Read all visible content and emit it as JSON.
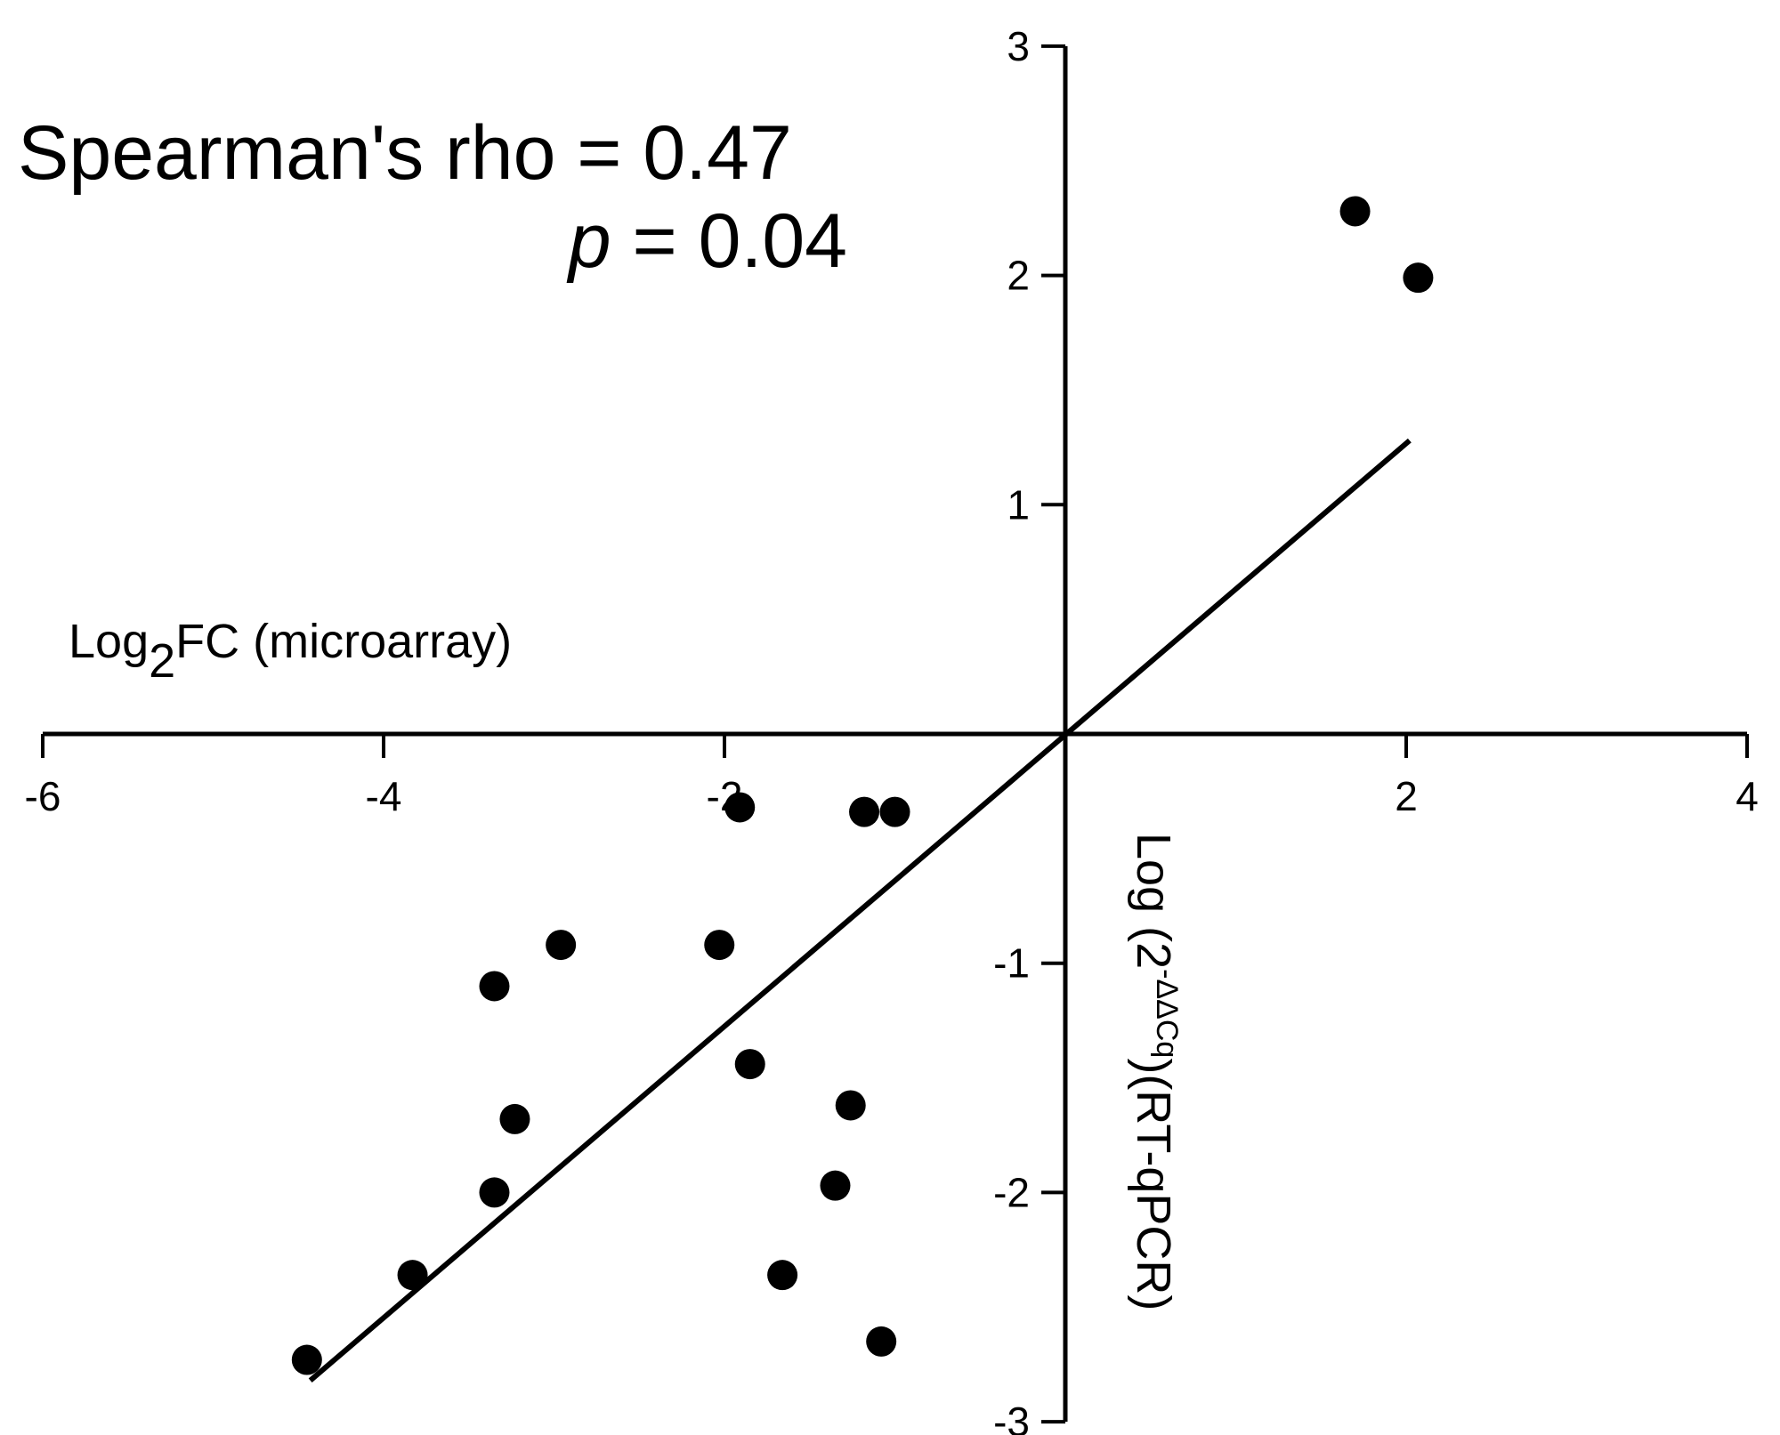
{
  "chart_data": {
    "type": "scatter",
    "title": "",
    "xlabel": {
      "main": "Log",
      "sub": "2",
      "rest": "FC (microarray)"
    },
    "ylabel": {
      "main": "Log (2",
      "sup": "-ΔΔCq",
      "rest": ")(RT-qPCR)"
    },
    "annotation": {
      "line1": "Spearman's rho = 0.47",
      "p_symbol": "p",
      "line2_rest": " = 0.04"
    },
    "xlim": [
      -6,
      4
    ],
    "ylim": [
      -3,
      3
    ],
    "x_ticks": [
      "-6",
      "-4",
      "-2",
      "2",
      "4"
    ],
    "x_tick_values": [
      -6,
      -4,
      -2,
      2,
      4
    ],
    "y_ticks": [
      "3",
      "2",
      "1",
      "-1",
      "-2",
      "-3"
    ],
    "y_tick_values": [
      3,
      2,
      1,
      -1,
      -2,
      -3
    ],
    "grid": false,
    "axes_cross_at_origin": true,
    "points": [
      {
        "x": 1.7,
        "y": 2.28
      },
      {
        "x": 2.07,
        "y": 1.99
      },
      {
        "x": -1.91,
        "y": -0.32
      },
      {
        "x": -1.18,
        "y": -0.34
      },
      {
        "x": -1.0,
        "y": -0.34
      },
      {
        "x": -2.96,
        "y": -0.92
      },
      {
        "x": -2.03,
        "y": -0.92
      },
      {
        "x": -3.35,
        "y": -1.1
      },
      {
        "x": -1.85,
        "y": -1.44
      },
      {
        "x": -3.23,
        "y": -1.68
      },
      {
        "x": -1.26,
        "y": -1.62
      },
      {
        "x": -3.35,
        "y": -2.0
      },
      {
        "x": -1.35,
        "y": -1.97
      },
      {
        "x": -3.83,
        "y": -2.36
      },
      {
        "x": -1.66,
        "y": -2.36
      },
      {
        "x": -4.45,
        "y": -2.73
      },
      {
        "x": -1.08,
        "y": -2.65
      }
    ],
    "fit_line": {
      "x": [
        -4.43,
        2.02
      ],
      "y": [
        -2.82,
        1.28
      ]
    },
    "colors": {
      "points": "#000000",
      "line": "#000000",
      "axes": "#000000"
    }
  }
}
